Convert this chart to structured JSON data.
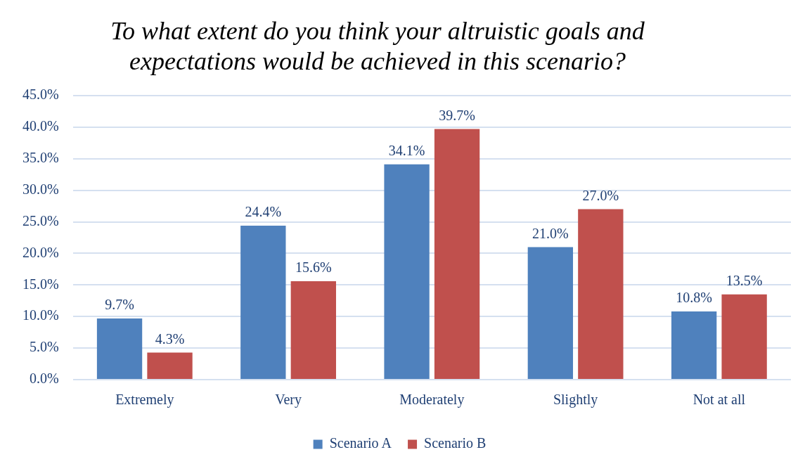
{
  "chart_data": {
    "type": "bar",
    "title": "To what extent do you think your altruistic goals and expectations would be achieved in this scenario?",
    "categories": [
      "Extremely",
      "Very",
      "Moderately",
      "Slightly",
      "Not at all"
    ],
    "series": [
      {
        "name": "Scenario A",
        "color": "#4f81bd",
        "values": [
          9.7,
          24.4,
          34.1,
          21.0,
          10.8
        ],
        "value_labels": [
          "9.7%",
          "24.4%",
          "34.1%",
          "21.0%",
          "10.8%"
        ]
      },
      {
        "name": "Scenario B",
        "color": "#c0504d",
        "values": [
          4.3,
          15.6,
          39.7,
          27.0,
          13.5
        ],
        "value_labels": [
          "4.3%",
          "15.6%",
          "39.7%",
          "27.0%",
          "13.5%"
        ]
      }
    ],
    "ylim": [
      0,
      45
    ],
    "yticks": [
      {
        "value": 0,
        "label": "0.0%"
      },
      {
        "value": 5,
        "label": "5.0%"
      },
      {
        "value": 10,
        "label": "10.0%"
      },
      {
        "value": 15,
        "label": "15.0%"
      },
      {
        "value": 20,
        "label": "20.0%"
      },
      {
        "value": 25,
        "label": "25.0%"
      },
      {
        "value": 30,
        "label": "30.0%"
      },
      {
        "value": 35,
        "label": "35.0%"
      },
      {
        "value": 40,
        "label": "40.0%"
      },
      {
        "value": 45,
        "label": "45.0%"
      }
    ],
    "grid": "y",
    "legend": "bottom"
  }
}
